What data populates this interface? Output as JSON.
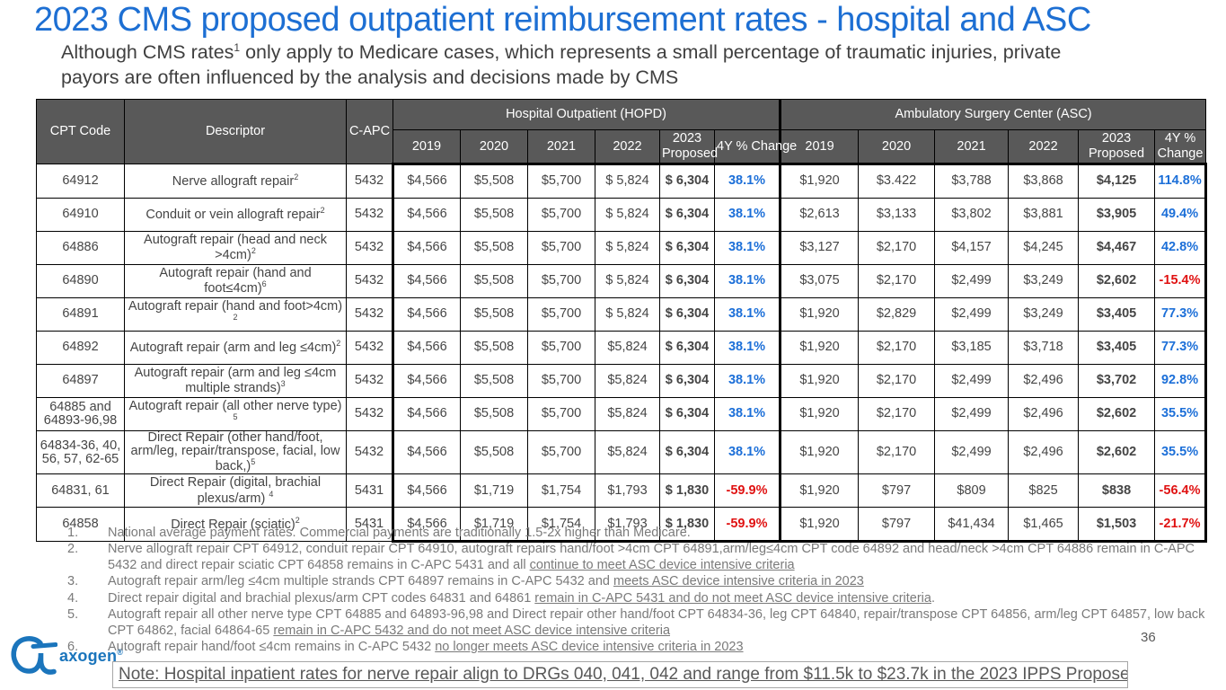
{
  "slide": {
    "title": "2023 CMS proposed outpatient reimbursement rates - hospital and ASC",
    "subtitle_pre": "Although CMS rates",
    "subtitle_sup": "1",
    "subtitle_post": " only apply to Medicare cases, which represents a small percentage of traumatic injuries, private payors are often influenced by the analysis and decisions made by CMS",
    "page_number": "36",
    "logo_text": "axogen",
    "logo_mark": "®",
    "note": "Note: Hospital inpatient rates for nerve repair align to DRGs 040, 041, 042 and range from $11.5k to $23.7k in the 2023 IPPS Proposed Rule"
  },
  "colors": {
    "title_blue": "#1d6fd3",
    "header_gray": "#595959",
    "positive_change_blue": "#1c6fd8",
    "negative_change_red": "#e01212",
    "logo_blue": "#1b75bc"
  },
  "table": {
    "left_headers": [
      "CPT Code",
      "Descriptor",
      "C-APC"
    ],
    "groups": [
      {
        "label": "Hospital Outpatient (HOPD)",
        "cols": [
          "2019",
          "2020",
          "2021",
          "2022",
          "2023 Proposed",
          "4Y % Change"
        ]
      },
      {
        "label": "Ambulatory Surgery Center (ASC)",
        "cols": [
          "2019",
          "2020",
          "2021",
          "2022",
          "2023 Proposed",
          "4Y % Change"
        ]
      }
    ],
    "rows": [
      {
        "cpt": "64912",
        "descriptor": "Nerve allograft repair",
        "descriptor_sup": "2",
        "capc": "5432",
        "hopd": [
          "$4,566",
          "$5,508",
          "$5,700",
          "$ 5,824",
          "$ 6,304"
        ],
        "hopd_change": "38.1%",
        "asc": [
          "$1,920",
          "$3.422",
          "$3,788",
          "$3,868",
          "$4,125"
        ],
        "asc_change": "114.8%"
      },
      {
        "cpt": "64910",
        "descriptor": "Conduit or vein allograft repair",
        "descriptor_sup": "2",
        "capc": "5432",
        "hopd": [
          "$4,566",
          "$5,508",
          "$5,700",
          "$ 5,824",
          "$ 6,304"
        ],
        "hopd_change": "38.1%",
        "asc": [
          "$2,613",
          "$3,133",
          "$3,802",
          "$3,881",
          "$3,905"
        ],
        "asc_change": "49.4%"
      },
      {
        "cpt": "64886",
        "descriptor": "Autograft repair (head and neck >4cm)",
        "descriptor_sup": "2",
        "capc": "5432",
        "hopd": [
          "$4,566",
          "$5,508",
          "$5,700",
          "$ 5,824",
          "$ 6,304"
        ],
        "hopd_change": "38.1%",
        "asc": [
          "$3,127",
          "$2,170",
          "$4,157",
          "$4,245",
          "$4,467"
        ],
        "asc_change": "42.8%"
      },
      {
        "cpt": "64890",
        "descriptor": "Autograft repair (hand and foot≤4cm)",
        "descriptor_sup": "6",
        "capc": "5432",
        "hopd": [
          "$4,566",
          "$5,508",
          "$5,700",
          "$ 5,824",
          "$ 6,304"
        ],
        "hopd_change": "38.1%",
        "asc": [
          "$3,075",
          "$2,170",
          "$2,499",
          "$3,249",
          "$2,602"
        ],
        "asc_change": "-15.4%"
      },
      {
        "cpt": "64891",
        "descriptor": "Autograft repair (hand and foot>4cm) ",
        "descriptor_sup": "2",
        "capc": "5432",
        "hopd": [
          "$4,566",
          "$5,508",
          "$5,700",
          "$ 5,824",
          "$ 6,304"
        ],
        "hopd_change": "38.1%",
        "asc": [
          "$1,920",
          "$2,829",
          "$2,499",
          "$3,249",
          "$3,405"
        ],
        "asc_change": "77.3%"
      },
      {
        "cpt": "64892",
        "descriptor": "Autograft repair (arm and leg ≤4cm)",
        "descriptor_sup": "2",
        "capc": "5432",
        "hopd": [
          "$4,566",
          "$5,508",
          "$5,700",
          "$5,824",
          "$ 6,304"
        ],
        "hopd_change": "38.1%",
        "asc": [
          "$1,920",
          "$2,170",
          "$3,185",
          "$3,718",
          "$3,405"
        ],
        "asc_change": "77.3%"
      },
      {
        "cpt": "64897",
        "descriptor": "Autograft repair (arm and leg ≤4cm multiple strands)",
        "descriptor_sup": "3",
        "capc": "5432",
        "hopd": [
          "$4,566",
          "$5,508",
          "$5,700",
          "$5,824",
          "$ 6,304"
        ],
        "hopd_change": "38.1%",
        "asc": [
          "$1,920",
          "$2,170",
          "$2,499",
          "$2,496",
          "$3,702"
        ],
        "asc_change": "92.8%"
      },
      {
        "cpt": "64885 and 64893-96,98",
        "descriptor": "Autograft repair (all other nerve type) ",
        "descriptor_sup": "5",
        "capc": "5432",
        "hopd": [
          "$4,566",
          "$5,508",
          "$5,700",
          "$5,824",
          "$ 6,304"
        ],
        "hopd_change": "38.1%",
        "asc": [
          "$1,920",
          "$2,170",
          "$2,499",
          "$2,496",
          "$2,602"
        ],
        "asc_change": "35.5%"
      },
      {
        "cpt": "64834-36, 40, 56, 57, 62-65",
        "descriptor": "Direct Repair (other hand/foot, arm/leg, repair/transpose, facial, low back,)",
        "descriptor_sup": "5",
        "capc": "5432",
        "hopd": [
          "$4,566",
          "$5,508",
          "$5,700",
          "$5,824",
          "$ 6,304"
        ],
        "hopd_change": "38.1%",
        "asc": [
          "$1,920",
          "$2,170",
          "$2,499",
          "$2,496",
          "$2,602"
        ],
        "asc_change": "35.5%"
      },
      {
        "cpt": "64831, 61",
        "descriptor": "Direct Repair (digital, brachial plexus/arm) ",
        "descriptor_sup": "4",
        "capc": "5431",
        "hopd": [
          "$4,566",
          "$1,719",
          "$1,754",
          "$1,793",
          "$ 1,830"
        ],
        "hopd_change": "-59.9%",
        "asc": [
          "$1,920",
          "$797",
          "$809",
          "$825",
          "$838"
        ],
        "asc_change": "-56.4%"
      },
      {
        "cpt": "64858",
        "descriptor": "Direct Repair (sciatic)",
        "descriptor_sup": "2",
        "capc": "5431",
        "hopd": [
          "$4,566",
          "$1,719",
          "$1,754",
          "$1,793",
          "$ 1,830"
        ],
        "hopd_change": "-59.9%",
        "asc": [
          "$1,920",
          "$797",
          "$41,434",
          "$1,465",
          "$1,503"
        ],
        "asc_change": "-21.7%"
      }
    ]
  },
  "footnotes": [
    {
      "num": "1.",
      "segments": [
        {
          "t": "National average payment rates. Commercial payments are traditionally 1.5-2x higher than Medicare."
        }
      ]
    },
    {
      "num": "2.",
      "segments": [
        {
          "t": "Nerve allograft repair CPT 64912, conduit repair CPT 64910, autograft repairs hand/foot >4cm CPT 64891,arm/leg≤4cm CPT code 64892 and head/neck >4cm CPT 64886 remain in C-APC 5432 and direct repair sciatic CPT 64858 remains in C-APC 5431 and all "
        },
        {
          "t": "continue to meet ASC device intensive criteria",
          "u": true
        }
      ]
    },
    {
      "num": "3.",
      "segments": [
        {
          "t": "Autograft repair arm/leg ≤4cm multiple strands CPT 64897 remains in C-APC 5432 and "
        },
        {
          "t": "meets ASC device intensive criteria in 2023",
          "u": true
        }
      ]
    },
    {
      "num": "4.",
      "segments": [
        {
          "t": "Direct repair digital and brachial plexus/arm CPT codes 64831 and 64861 "
        },
        {
          "t": "remain in C-APC 5431 and do not meet ASC device intensive criteria",
          "u": true
        },
        {
          "t": "."
        }
      ]
    },
    {
      "num": "5.",
      "segments": [
        {
          "t": "Autograft repair all other nerve type CPT 64885 and 64893-96,98 and Direct repair other hand/foot CPT 64834-36, leg CPT 64840, repair/transpose CPT 64856, arm/leg CPT 64857, low back CPT 64862, facial 64864-65 "
        },
        {
          "t": "remain in C-APC 5432 and do not meet ASC device intensive criteria",
          "u": true
        }
      ]
    },
    {
      "num": "6.",
      "segments": [
        {
          "t": "Autograft repair hand/foot ≤4cm remains in C-APC 5432 "
        },
        {
          "t": "no longer meets ASC device intensive criteria in 2023",
          "u": true
        }
      ]
    }
  ]
}
